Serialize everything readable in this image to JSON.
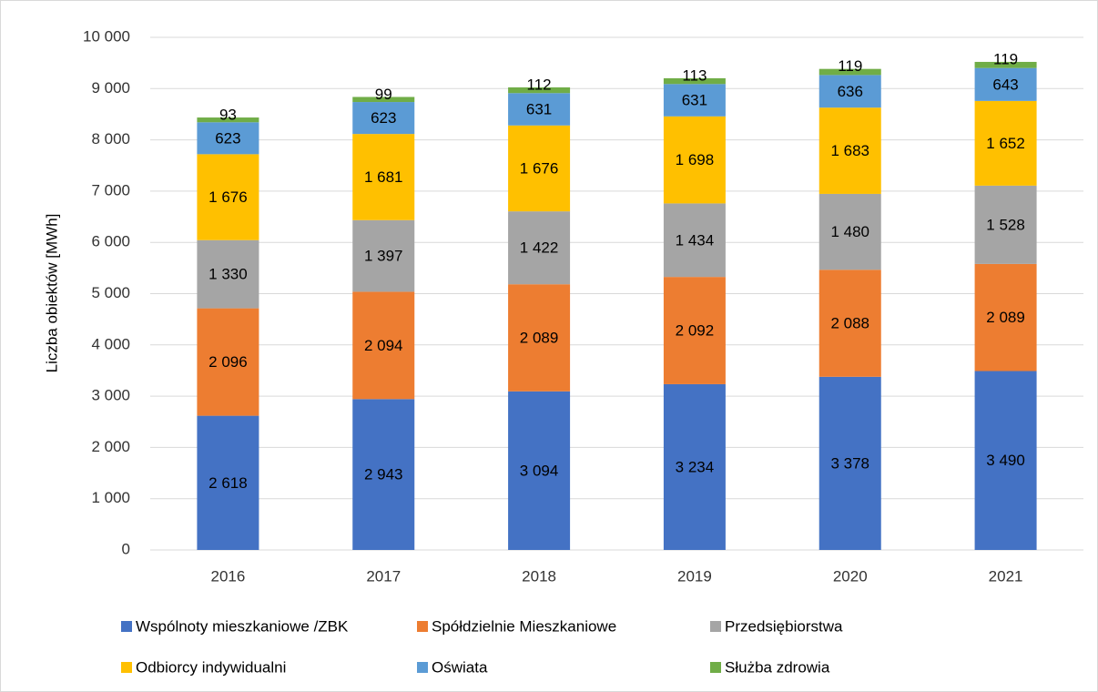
{
  "chart_data": {
    "type": "bar",
    "stacked": true,
    "y_label": "Liczba obiektów [MWh]",
    "categories": [
      "2016",
      "2017",
      "2018",
      "2019",
      "2020",
      "2021"
    ],
    "series": [
      {
        "name": "Wspólnoty mieszkaniowe /ZBK",
        "color": "#4472c4",
        "values": [
          2618,
          2943,
          3094,
          3234,
          3378,
          3490
        ],
        "value_labels": [
          "2 618",
          "2 943",
          "3 094",
          "3 234",
          "3 378",
          "3 490"
        ]
      },
      {
        "name": "Spółdzielnie Mieszkaniowe",
        "color": "#ed7d31",
        "values": [
          2096,
          2094,
          2089,
          2092,
          2088,
          2089
        ],
        "value_labels": [
          "2 096",
          "2 094",
          "2 089",
          "2 092",
          "2 088",
          "2 089"
        ]
      },
      {
        "name": "Przedsiębiorstwa",
        "color": "#a5a5a5",
        "values": [
          1330,
          1397,
          1422,
          1434,
          1480,
          1528
        ],
        "value_labels": [
          "1 330",
          "1 397",
          "1 422",
          "1 434",
          "1 480",
          "1 528"
        ]
      },
      {
        "name": "Odbiorcy indywidualni",
        "color": "#ffc000",
        "values": [
          1676,
          1681,
          1676,
          1698,
          1683,
          1652
        ],
        "value_labels": [
          "1 676",
          "1 681",
          "1 676",
          "1 698",
          "1 683",
          "1 652"
        ]
      },
      {
        "name": "Oświata",
        "color": "#5b9bd5",
        "values": [
          623,
          623,
          631,
          631,
          636,
          643
        ]
      },
      {
        "name": "Służba zdrowia",
        "color": "#70ad47",
        "values": [
          93,
          99,
          112,
          113,
          119,
          119
        ]
      }
    ],
    "ylim": [
      0,
      10000
    ],
    "yticks": [
      0,
      {
        "value": 1000,
        "label": "1 000"
      },
      {
        "value": 2000,
        "label": "2 000"
      },
      {
        "value": 3000,
        "label": "3 000"
      },
      {
        "value": 4000,
        "label": "4 000"
      },
      {
        "value": 5000,
        "label": "5 000"
      },
      {
        "value": 6000,
        "label": "6 000"
      },
      {
        "value": 7000,
        "label": "7 000"
      },
      {
        "value": 8000,
        "label": "8 000"
      },
      {
        "value": 9000,
        "label": "9 000"
      },
      {
        "value": 10000,
        "label": "10 000"
      }
    ],
    "grid": true,
    "legend": "bottom"
  }
}
